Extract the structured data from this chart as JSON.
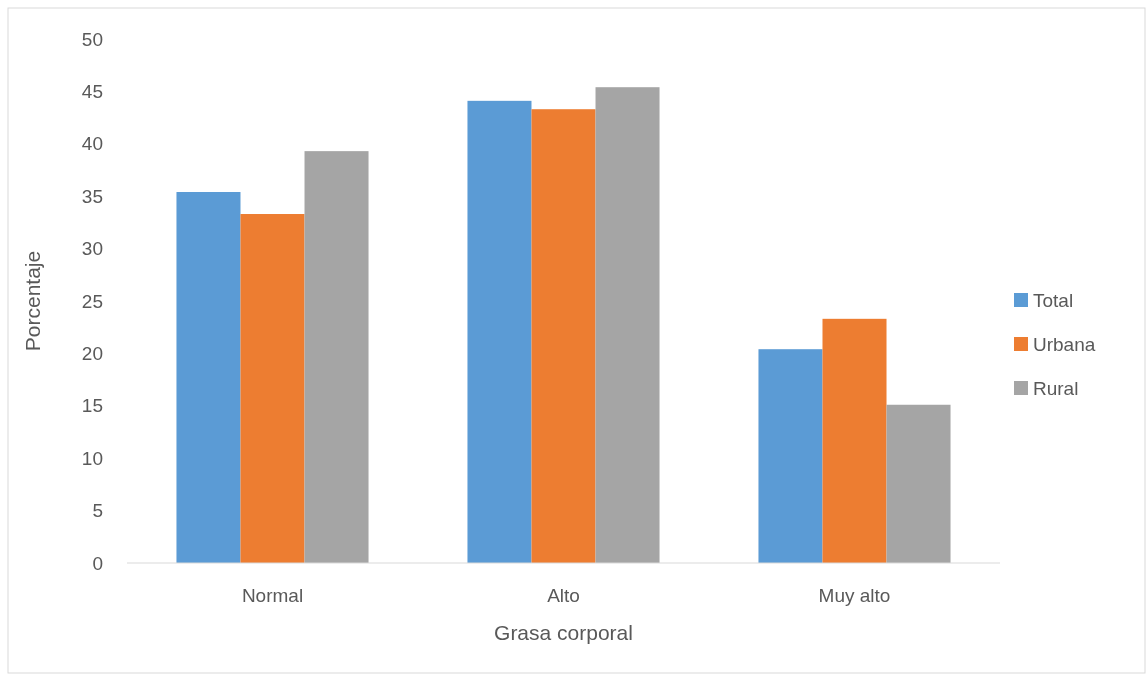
{
  "chart_data": {
    "type": "bar",
    "xlabel": "Grasa corporal",
    "ylabel": "Porcentaje",
    "categories": [
      "Normal",
      "Alto",
      "Muy alto"
    ],
    "series": [
      {
        "name": "Total",
        "color": "#5b9bd5",
        "values": [
          35.4,
          44.1,
          20.4
        ]
      },
      {
        "name": "Urbana",
        "color": "#ed7d31",
        "values": [
          33.3,
          43.3,
          23.3
        ]
      },
      {
        "name": "Rural",
        "color": "#a5a5a5",
        "values": [
          39.3,
          45.4,
          15.1
        ]
      }
    ],
    "ylim": [
      0,
      50
    ],
    "yticks": [
      0,
      5,
      10,
      15,
      20,
      25,
      30,
      35,
      40,
      45,
      50
    ],
    "grid": false,
    "legend": "right"
  }
}
